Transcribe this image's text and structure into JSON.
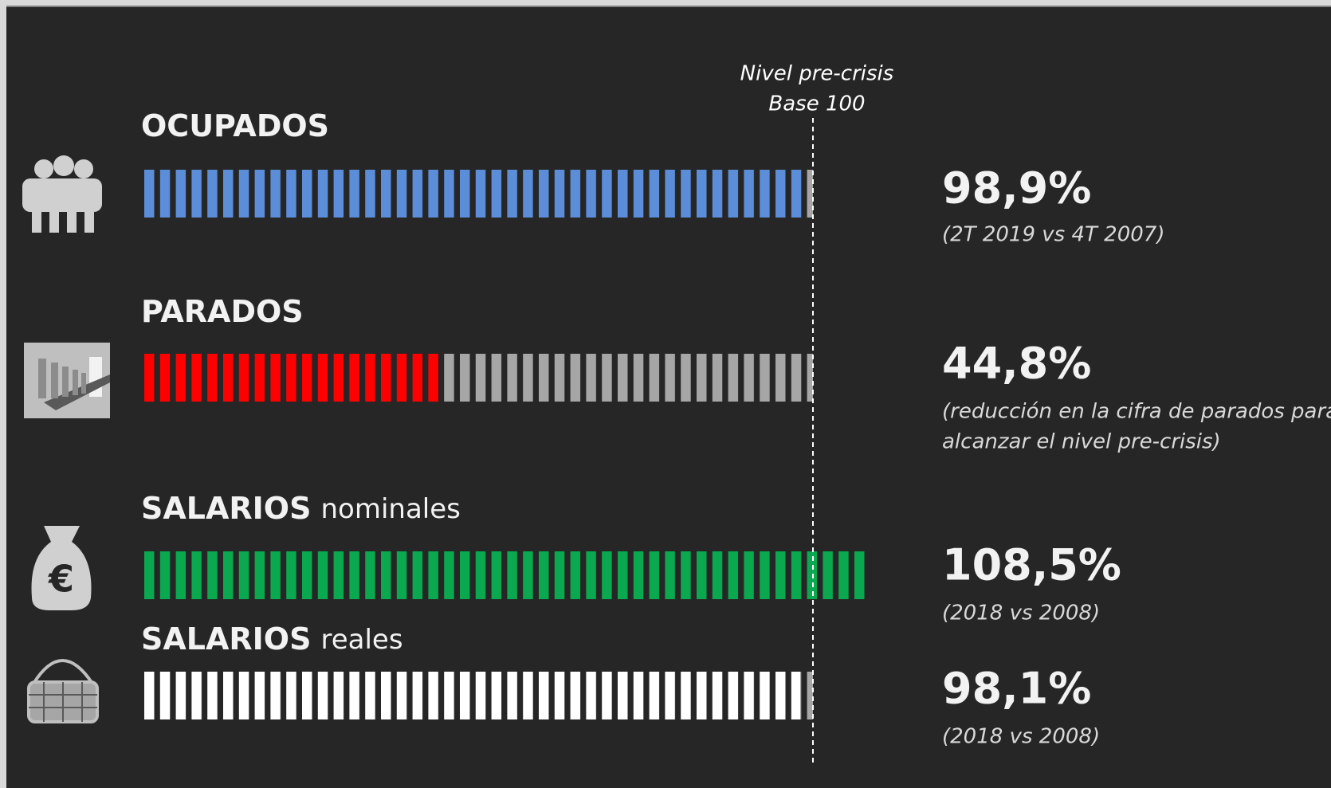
{
  "chart_data": {
    "type": "bar",
    "reference": {
      "value": 100,
      "labels": [
        "Nivel pre-crisis",
        "Base 100"
      ]
    },
    "remainder_color": "#a6a6a6",
    "rows": [
      {
        "label": "OCUPADOS",
        "value": 98.9,
        "value_label": "98,9%",
        "color": "#5b8dd8",
        "note": [
          "(2T 2019 vs 4T 2007)"
        ]
      },
      {
        "label": "PARADOS",
        "value": 44.8,
        "value_label": "44,8%",
        "color": "#ff0000",
        "note": [
          "(reducción en la cifra de parados para",
          "alcanzar el nivel pre-crisis)"
        ]
      },
      {
        "label": "SALARIOS",
        "qualifier": "nominales",
        "value": 108.5,
        "value_label": "108,5%",
        "color": "#0aa84f",
        "note": [
          "(2018 vs 2008)"
        ]
      },
      {
        "label": "SALARIOS",
        "qualifier": "reales",
        "value": 98.1,
        "value_label": "98,1%",
        "color": "#ffffff",
        "note": [
          "(2018 vs 2008)"
        ]
      }
    ]
  }
}
